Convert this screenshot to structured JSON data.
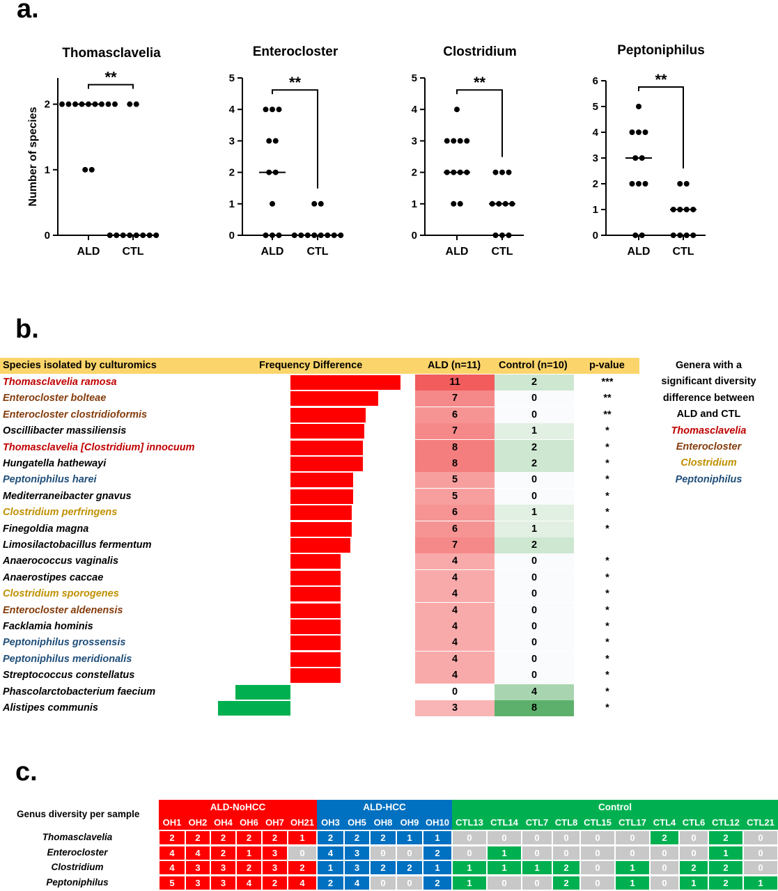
{
  "panels": {
    "a": "a.",
    "b": "b.",
    "c": "c."
  },
  "chart_data": [
    {
      "type": "scatter",
      "title": "Thomasclavelia",
      "ylabel": "Number of species",
      "categories": [
        "ALD",
        "CTL"
      ],
      "ylim": [
        0,
        2.4
      ],
      "yticks": [
        0,
        1,
        2
      ],
      "significance": "**",
      "series": [
        {
          "values": [
            2,
            2,
            2,
            2,
            2,
            2,
            2,
            2,
            2,
            1,
            1
          ],
          "median": 2
        },
        {
          "values": [
            2,
            2,
            0,
            0,
            0,
            0,
            0,
            0,
            0,
            0
          ],
          "median": 0
        }
      ]
    },
    {
      "type": "scatter",
      "title": "Enterocloster",
      "categories": [
        "ALD",
        "CTL"
      ],
      "ylim": [
        0,
        5
      ],
      "yticks": [
        0,
        1,
        2,
        3,
        4,
        5
      ],
      "significance": "**",
      "series": [
        {
          "values": [
            4,
            4,
            4,
            3,
            3,
            2,
            2,
            1,
            0,
            0,
            0
          ],
          "median": 2
        },
        {
          "values": [
            1,
            1,
            0,
            0,
            0,
            0,
            0,
            0,
            0,
            0
          ],
          "median": 0
        }
      ]
    },
    {
      "type": "scatter",
      "title": "Clostridium",
      "categories": [
        "ALD",
        "CTL"
      ],
      "ylim": [
        0,
        5
      ],
      "yticks": [
        0,
        1,
        2,
        3,
        4,
        5
      ],
      "significance": "**",
      "series": [
        {
          "values": [
            4,
            3,
            3,
            3,
            3,
            2,
            2,
            2,
            2,
            1,
            1
          ],
          "median": 2
        },
        {
          "values": [
            2,
            2,
            2,
            1,
            1,
            1,
            1,
            0,
            0,
            0
          ],
          "median": 1
        }
      ]
    },
    {
      "type": "scatter",
      "title": "Peptoniphilus",
      "categories": [
        "ALD",
        "CTL"
      ],
      "ylim": [
        0,
        6
      ],
      "yticks": [
        0,
        1,
        2,
        3,
        4,
        5,
        6
      ],
      "significance": "**",
      "series": [
        {
          "values": [
            5,
            4,
            4,
            4,
            3,
            3,
            2,
            2,
            2,
            0,
            0
          ],
          "median": 3
        },
        {
          "values": [
            2,
            2,
            1,
            1,
            1,
            1,
            0,
            0,
            0,
            0
          ],
          "median": 1
        }
      ]
    },
    {
      "type": "table",
      "headers": [
        "Species isolated by culturomics",
        "Frequency Difference",
        "ALD (n=11)",
        "Control (n=10)",
        "p-value"
      ],
      "rows": [
        {
          "species": "Thomasclavelia ramosa",
          "genus": "Thomasclavelia",
          "ald": 11,
          "ctl": 2,
          "p": "***"
        },
        {
          "species": "Enterocloster bolteae",
          "genus": "Enterocloster",
          "ald": 7,
          "ctl": 0,
          "p": "**"
        },
        {
          "species": "Enterocloster clostridioformis",
          "genus": "Enterocloster",
          "ald": 6,
          "ctl": 0,
          "p": "**"
        },
        {
          "species": "Oscillibacter massiliensis",
          "genus": "",
          "ald": 7,
          "ctl": 1,
          "p": "*"
        },
        {
          "species": "Thomasclavelia [Clostridium] innocuum",
          "genus": "Thomasclavelia",
          "ald": 8,
          "ctl": 2,
          "p": "*"
        },
        {
          "species": "Hungatella hathewayi",
          "genus": "",
          "ald": 8,
          "ctl": 2,
          "p": "*"
        },
        {
          "species": "Peptoniphilus harei",
          "genus": "Peptoniphilus",
          "ald": 5,
          "ctl": 0,
          "p": "*"
        },
        {
          "species": "Mediterraneibacter gnavus",
          "genus": "",
          "ald": 5,
          "ctl": 0,
          "p": "*"
        },
        {
          "species": "Clostridium perfringens",
          "genus": "Clostridium",
          "ald": 6,
          "ctl": 1,
          "p": "*"
        },
        {
          "species": "Finegoldia magna",
          "genus": "",
          "ald": 6,
          "ctl": 1,
          "p": "*"
        },
        {
          "species": "Limosilactobacillus fermentum",
          "genus": "",
          "ald": 7,
          "ctl": 2,
          "p": ""
        },
        {
          "species": "Anaerococcus vaginalis",
          "genus": "",
          "ald": 4,
          "ctl": 0,
          "p": "*"
        },
        {
          "species": "Anaerostipes caccae",
          "genus": "",
          "ald": 4,
          "ctl": 0,
          "p": "*"
        },
        {
          "species": "Clostridium sporogenes",
          "genus": "Clostridium",
          "ald": 4,
          "ctl": 0,
          "p": "*"
        },
        {
          "species": "Enterocloster aldenensis",
          "genus": "Enterocloster",
          "ald": 4,
          "ctl": 0,
          "p": "*"
        },
        {
          "species": "Facklamia hominis",
          "genus": "",
          "ald": 4,
          "ctl": 0,
          "p": "*"
        },
        {
          "species": "Peptoniphilus grossensis",
          "genus": "Peptoniphilus",
          "ald": 4,
          "ctl": 0,
          "p": "*"
        },
        {
          "species": "Peptoniphilus meridionalis",
          "genus": "Peptoniphilus",
          "ald": 4,
          "ctl": 0,
          "p": "*"
        },
        {
          "species": "Streptococcus constellatus",
          "genus": "",
          "ald": 4,
          "ctl": 0,
          "p": "*"
        },
        {
          "species": "Phascolarctobacterium faecium",
          "genus": "",
          "ald": 0,
          "ctl": 4,
          "p": "*"
        },
        {
          "species": "Alistipes communis",
          "genus": "",
          "ald": 3,
          "ctl": 8,
          "p": "*"
        }
      ],
      "legend_title": [
        "Genera with a",
        "significant diversity",
        "difference between",
        "ALD and CTL"
      ],
      "legend_genera": [
        "Thomasclavelia",
        "Enterocloster",
        "Clostridium",
        "Peptoniphilus"
      ]
    },
    {
      "type": "heatmap",
      "title": "Genus diversity per sample",
      "groups": [
        {
          "name": "ALD-NoHCC",
          "samples": [
            "OH1",
            "OH2",
            "OH4",
            "OH6",
            "OH7",
            "OH21"
          ]
        },
        {
          "name": "ALD-HCC",
          "samples": [
            "OH3",
            "OH5",
            "OH8",
            "OH9",
            "OH10"
          ]
        },
        {
          "name": "Control",
          "samples": [
            "CTL13",
            "CTL14",
            "CTL7",
            "CTL8",
            "CTL15",
            "CTL17",
            "CTL4",
            "CTL6",
            "CTL12",
            "CTL21"
          ]
        }
      ],
      "rows": [
        {
          "genus": "Thomasclavelia",
          "values": [
            2,
            2,
            2,
            2,
            2,
            1,
            2,
            2,
            2,
            1,
            1,
            0,
            0,
            0,
            0,
            0,
            0,
            2,
            0,
            2,
            0
          ]
        },
        {
          "genus": "Enterocloster",
          "values": [
            4,
            4,
            2,
            1,
            3,
            0,
            4,
            3,
            0,
            0,
            2,
            0,
            1,
            0,
            0,
            0,
            0,
            0,
            0,
            1,
            0
          ]
        },
        {
          "genus": "Clostridium",
          "values": [
            4,
            3,
            3,
            2,
            3,
            2,
            1,
            3,
            2,
            2,
            1,
            1,
            1,
            1,
            2,
            0,
            1,
            0,
            2,
            2,
            0
          ]
        },
        {
          "genus": "Peptoniphilus",
          "values": [
            5,
            3,
            3,
            4,
            2,
            4,
            2,
            4,
            0,
            0,
            2,
            1,
            0,
            0,
            2,
            0,
            1,
            0,
            1,
            2,
            1
          ]
        }
      ]
    }
  ],
  "colors": {
    "Thomasclavelia": "#c00000",
    "Enterocloster": "#843c0c",
    "Clostridium": "#bf9000",
    "Peptoniphilus": "#1f4e79",
    "ald_group": "#ff0000",
    "hcc_group": "#0070c0",
    "control_group": "#00b050",
    "zero_cell": "#c8c8c8"
  }
}
